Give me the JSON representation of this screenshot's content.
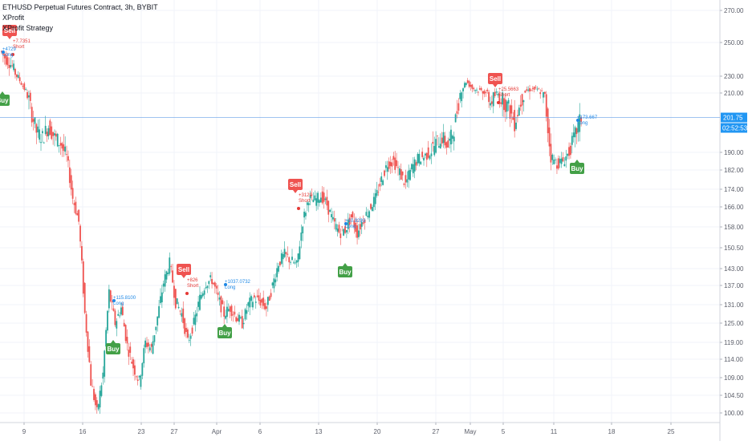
{
  "header": {
    "symbol_line": "ETHUSD Perpetual Futures Contract, 3h, BYBIT",
    "indicator_1": "XProfit",
    "indicator_2": "XProfit Strategy"
  },
  "price_axis": {
    "ticks": [
      "270.00",
      "250.00",
      "230.00",
      "210.00",
      "201.75",
      "190.00",
      "182.00",
      "174.00",
      "166.00",
      "158.00",
      "150.50",
      "143.00",
      "137.00",
      "131.00",
      "125.00",
      "119.00",
      "114.00",
      "109.00",
      "104.50",
      "100.00"
    ],
    "current_price": "201.75",
    "countdown": "02:52:53"
  },
  "time_axis": {
    "ticks": [
      "9",
      "16",
      "23",
      "27",
      "Apr",
      "6",
      "13",
      "20",
      "27",
      "May",
      "5",
      "11",
      "18",
      "25"
    ]
  },
  "chart_data": {
    "type": "candlestick",
    "symbol": "ETHUSD",
    "interval": "3h",
    "exchange": "BYBIT",
    "y_axis_ticks": [
      270,
      250,
      230,
      210,
      190,
      182,
      174,
      166,
      158,
      150.5,
      143,
      137,
      131,
      125,
      119,
      114,
      109,
      104.5,
      100
    ],
    "current_price": 201.75,
    "signals": [
      {
        "type": "Sell",
        "side": "Short",
        "price_label": "+7.7351"
      },
      {
        "type": "Buy",
        "side": "Long",
        "price_label": "+4729"
      },
      {
        "type": "Buy",
        "side": "Long",
        "price_label": "+115.8100"
      },
      {
        "type": "Sell",
        "side": "Short",
        "price_label": "+826"
      },
      {
        "type": "Buy",
        "side": "Long",
        "price_label": "+1037.0732"
      },
      {
        "type": "Sell",
        "side": "Short",
        "price_label": "+3129"
      },
      {
        "type": "Buy",
        "side": "Long",
        "price_label": "+10.9293"
      },
      {
        "type": "Sell",
        "side": "Short",
        "price_label": "+25.5663"
      },
      {
        "type": "Buy",
        "side": "Long",
        "price_label": "+173.667"
      }
    ],
    "series": [
      {
        "name": "price",
        "values": [
          245,
          240,
          236,
          228,
          215,
          205,
          197,
          195,
          199,
          195,
          193,
          188,
          170,
          160,
          128,
          108,
          100,
          110,
          135,
          125,
          130,
          118,
          112,
          108,
          119,
          117,
          127,
          138,
          145,
          132,
          128,
          119,
          125,
          133,
          138,
          139,
          133,
          128,
          130,
          127,
          125,
          131,
          133,
          132,
          130,
          137,
          145,
          148,
          146,
          144,
          160,
          170,
          169,
          171,
          167,
          160,
          156,
          157,
          162,
          156,
          161,
          165,
          170,
          178,
          185,
          186,
          181,
          176,
          183,
          187,
          188,
          190,
          193,
          195,
          192,
          198,
          210,
          224,
          216,
          213,
          212,
          207,
          210,
          208,
          205,
          200,
          207,
          213,
          215,
          213,
          208,
          188,
          185,
          186,
          190,
          196,
          201.75
        ]
      }
    ]
  }
}
